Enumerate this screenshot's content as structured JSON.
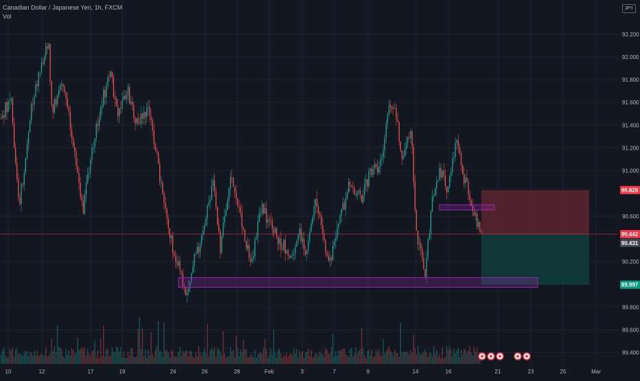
{
  "header": {
    "symbol_line": "Canadian Dollar / Japanese Yen, 1h, FXCM",
    "volume_label": "Vol",
    "currency_badge": "JPY"
  },
  "colors": {
    "background": "#131722",
    "grid": "#1e222d",
    "text": "#b2b5be",
    "up_candle": "#26a69a",
    "down_candle": "#ef5350",
    "stop_zone": "#5b2430",
    "target_zone": "#0f3b3b",
    "highlight_box": "#9c27b0",
    "current_price_line": "#f23645"
  },
  "chart_data": {
    "type": "candlestick",
    "title": "Canadian Dollar / Japanese Yen, 1h, FXCM",
    "y_axis": {
      "ticks": [
        "92.200",
        "92.000",
        "91.800",
        "91.600",
        "91.400",
        "91.200",
        "91.000",
        "90.600",
        "90.200",
        "89.800",
        "89.600",
        "89.400"
      ],
      "range": [
        89.35,
        92.42
      ],
      "price_labels": [
        {
          "name": "stop-price",
          "value": "90.829",
          "color": "#f23645"
        },
        {
          "name": "current-price",
          "value": "90.442",
          "color": "#f23645"
        },
        {
          "name": "last-price",
          "value": "90.431",
          "color": "#434651"
        },
        {
          "name": "target-price",
          "value": "89.997",
          "color": "#089981"
        }
      ]
    },
    "x_axis": {
      "ticks": [
        "10",
        "12",
        "17",
        "19",
        "24",
        "26",
        "28",
        "Feb",
        "3",
        "7",
        "9",
        "14",
        "16",
        "21",
        "23",
        "25",
        "Mar"
      ]
    },
    "series_path": [
      [
        0,
        91.45
      ],
      [
        15,
        91.65
      ],
      [
        27,
        90.65
      ],
      [
        45,
        91.55
      ],
      [
        60,
        91.95
      ],
      [
        70,
        92.1
      ],
      [
        75,
        91.55
      ],
      [
        90,
        91.75
      ],
      [
        105,
        91.3
      ],
      [
        120,
        90.65
      ],
      [
        135,
        91.25
      ],
      [
        150,
        91.65
      ],
      [
        160,
        91.9
      ],
      [
        170,
        91.5
      ],
      [
        185,
        91.7
      ],
      [
        200,
        91.4
      ],
      [
        215,
        91.55
      ],
      [
        228,
        91.1
      ],
      [
        245,
        90.45
      ],
      [
        262,
        90.1
      ],
      [
        270,
        89.9
      ],
      [
        282,
        90.2
      ],
      [
        295,
        90.45
      ],
      [
        310,
        90.9
      ],
      [
        320,
        90.3
      ],
      [
        335,
        90.95
      ],
      [
        350,
        90.6
      ],
      [
        365,
        90.15
      ],
      [
        380,
        90.7
      ],
      [
        395,
        90.5
      ],
      [
        410,
        90.35
      ],
      [
        425,
        90.25
      ],
      [
        435,
        90.45
      ],
      [
        445,
        90.3
      ],
      [
        460,
        90.75
      ],
      [
        478,
        90.15
      ],
      [
        495,
        90.6
      ],
      [
        510,
        90.9
      ],
      [
        525,
        90.75
      ],
      [
        540,
        91.0
      ],
      [
        555,
        91.05
      ],
      [
        565,
        91.55
      ],
      [
        575,
        91.55
      ],
      [
        585,
        91.1
      ],
      [
        598,
        91.35
      ],
      [
        605,
        90.45
      ],
      [
        612,
        90.3
      ],
      [
        618,
        90.05
      ],
      [
        628,
        90.7
      ],
      [
        640,
        91.0
      ],
      [
        650,
        90.85
      ],
      [
        665,
        91.3
      ],
      [
        672,
        91.0
      ],
      [
        682,
        90.8
      ],
      [
        692,
        90.6
      ],
      [
        700,
        90.44
      ]
    ],
    "boxes": [
      {
        "name": "support-zone-box",
        "from": [
          260,
          90.06
        ],
        "to": [
          783,
          89.98
        ],
        "color": "#9c27b0"
      },
      {
        "name": "resistance-zone-box",
        "from": [
          640,
          90.7
        ],
        "to": [
          720,
          90.66
        ],
        "color": "#9c27b0"
      }
    ],
    "position_tool": {
      "entry": 90.442,
      "stop": 90.829,
      "target": 89.997,
      "x_start": 701,
      "x_end": 858
    },
    "current_price": 90.442,
    "event_markers": 5,
    "volume": "shown"
  }
}
